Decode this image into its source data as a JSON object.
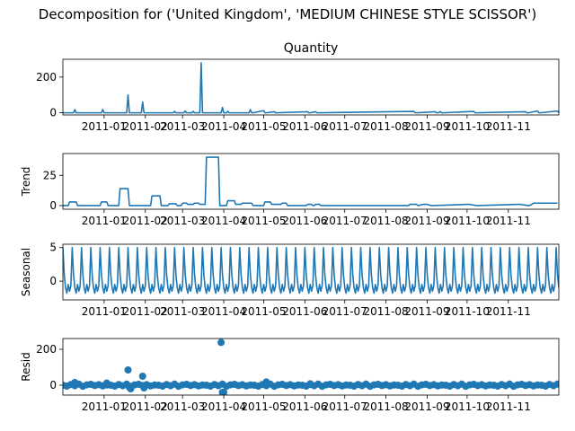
{
  "suptitle": "Decomposition for ('United Kingdom', 'MEDIUM CHINESE STYLE SCISSOR')",
  "colors": {
    "line": "#1f77b4",
    "axis": "#000000",
    "background": "#ffffff"
  },
  "x_axis": {
    "type": "date",
    "range": [
      "2010-12-01",
      "2011-12-09"
    ],
    "tick_labels": [
      "2011-01",
      "2011-02",
      "2011-03",
      "2011-04",
      "2011-05",
      "2011-06",
      "2011-07",
      "2011-08",
      "2011-09",
      "2011-10",
      "2011-11"
    ],
    "tick_dates": [
      "2011-01-01",
      "2011-02-01",
      "2011-03-01",
      "2011-04-01",
      "2011-05-01",
      "2011-06-01",
      "2011-07-01",
      "2011-08-01",
      "2011-09-01",
      "2011-10-01",
      "2011-11-01"
    ]
  },
  "chart_data": [
    {
      "type": "line",
      "title": "Quantity",
      "ylabel": "",
      "ylim": [
        -12,
        300
      ],
      "yticks": [
        0,
        200
      ],
      "series": [
        {
          "x": [
            "2010-12-01",
            "2010-12-09",
            "2010-12-10",
            "2010-12-11",
            "2010-12-30",
            "2010-12-31",
            "2011-01-01",
            "2011-01-18",
            "2011-01-19",
            "2011-01-20",
            "2011-01-29",
            "2011-01-30",
            "2011-01-31",
            "2011-02-22",
            "2011-02-23",
            "2011-02-24",
            "2011-03-02",
            "2011-03-03",
            "2011-03-04",
            "2011-03-08",
            "2011-03-09",
            "2011-03-10",
            "2011-03-14",
            "2011-03-15",
            "2011-03-16",
            "2011-03-30",
            "2011-03-31",
            "2011-04-01",
            "2011-04-03",
            "2011-04-04",
            "2011-04-05",
            "2011-04-20",
            "2011-04-21",
            "2011-04-22",
            "2011-04-23",
            "2011-05-01",
            "2011-05-02",
            "2011-05-03",
            "2011-05-09",
            "2011-05-10",
            "2011-05-11",
            "2011-06-03",
            "2011-06-04",
            "2011-06-05",
            "2011-06-09",
            "2011-06-10",
            "2011-06-11",
            "2011-08-22",
            "2011-08-23",
            "2011-08-24",
            "2011-09-07",
            "2011-09-08",
            "2011-09-09",
            "2011-09-11",
            "2011-09-12",
            "2011-09-13",
            "2011-10-06",
            "2011-10-07",
            "2011-10-08",
            "2011-11-14",
            "2011-11-15",
            "2011-11-16",
            "2011-11-23",
            "2011-11-24",
            "2011-11-25",
            "2011-12-08",
            "2011-12-09"
          ],
          "y": [
            0,
            0,
            18,
            0,
            0,
            18,
            0,
            0,
            100,
            0,
            0,
            60,
            0,
            0,
            8,
            0,
            0,
            10,
            0,
            0,
            8,
            0,
            0,
            280,
            0,
            0,
            30,
            0,
            0,
            8,
            0,
            0,
            18,
            0,
            0,
            12,
            0,
            0,
            6,
            0,
            0,
            6,
            0,
            0,
            6,
            0,
            0,
            8,
            0,
            0,
            6,
            0,
            0,
            6,
            0,
            0,
            8,
            0,
            0,
            6,
            0,
            0,
            10,
            0,
            0,
            10,
            0
          ]
        }
      ]
    },
    {
      "type": "line",
      "ylabel": "Trend",
      "ylim": [
        -3,
        43
      ],
      "yticks": [
        0,
        25
      ],
      "series": [
        {
          "x": [
            "2010-12-01",
            "2010-12-05",
            "2010-12-06",
            "2010-12-11",
            "2010-12-12",
            "2010-12-29",
            "2010-12-30",
            "2011-01-03",
            "2011-01-04",
            "2011-01-12",
            "2011-01-13",
            "2011-01-19",
            "2011-01-20",
            "2011-02-05",
            "2011-02-06",
            "2011-02-12",
            "2011-02-13",
            "2011-02-18",
            "2011-02-19",
            "2011-02-24",
            "2011-02-25",
            "2011-02-28",
            "2011-03-01",
            "2011-03-04",
            "2011-03-05",
            "2011-03-09",
            "2011-03-10",
            "2011-03-13",
            "2011-03-14",
            "2011-03-18",
            "2011-03-19",
            "2011-03-28",
            "2011-03-29",
            "2011-04-03",
            "2011-04-04",
            "2011-04-09",
            "2011-04-10",
            "2011-04-14",
            "2011-04-15",
            "2011-04-22",
            "2011-04-23",
            "2011-05-01",
            "2011-05-02",
            "2011-05-06",
            "2011-05-07",
            "2011-05-14",
            "2011-05-15",
            "2011-05-18",
            "2011-05-19",
            "2011-06-02",
            "2011-06-03",
            "2011-06-06",
            "2011-06-07",
            "2011-06-08",
            "2011-06-09",
            "2011-06-12",
            "2011-06-13",
            "2011-06-28",
            "2011-08-18",
            "2011-08-19",
            "2011-08-24",
            "2011-08-25",
            "2011-08-29",
            "2011-09-01",
            "2011-09-04",
            "2011-09-05",
            "2011-10-02",
            "2011-10-03",
            "2011-10-08",
            "2011-10-09",
            "2011-11-09",
            "2011-11-10",
            "2011-11-16",
            "2011-11-17",
            "2011-11-20",
            "2011-11-21",
            "2011-12-08"
          ],
          "y": [
            0,
            0,
            3,
            3,
            0,
            0,
            3,
            3,
            0,
            0,
            14,
            14,
            0,
            0,
            8,
            8,
            0,
            0,
            1.5,
            1.5,
            0,
            0,
            2,
            2,
            1,
            1,
            2,
            2,
            1,
            1,
            40,
            40,
            0,
            0,
            4,
            4,
            1,
            1,
            2,
            2,
            0,
            0,
            3,
            3,
            1,
            1,
            2,
            2,
            0,
            0,
            1,
            1,
            0,
            0,
            1,
            1,
            0,
            0,
            0,
            1,
            1,
            0,
            1,
            1,
            0,
            0,
            1,
            1,
            0,
            0,
            1,
            1,
            0,
            0,
            2,
            2,
            2
          ]
        }
      ]
    },
    {
      "type": "line",
      "ylabel": "Seasonal",
      "ylim": [
        -2.8,
        5.5
      ],
      "yticks": [
        0,
        5
      ],
      "pattern": {
        "period_days": 7,
        "weekly_values": [
          5,
          1,
          -1,
          -1.8,
          -0.5,
          -1.5,
          -0.7
        ],
        "range": [
          "2010-12-01",
          "2011-12-09"
        ]
      }
    },
    {
      "type": "scatter",
      "ylabel": "Resid",
      "ylim": [
        -55,
        260
      ],
      "yticks": [
        0,
        200
      ],
      "baseline": {
        "range": [
          "2010-12-01",
          "2011-12-09"
        ],
        "step_days": 3,
        "values": [
          0,
          -5,
          4,
          -3,
          6,
          -6,
          2,
          5,
          -2,
          3,
          -4,
          1
        ]
      },
      "series": [
        {
          "x": [
            "2010-12-10",
            "2011-01-03",
            "2011-01-19",
            "2011-01-20",
            "2011-01-21",
            "2011-01-30",
            "2011-01-31",
            "2011-03-30",
            "2011-03-31",
            "2011-04-01",
            "2011-05-03",
            "2011-06-05"
          ],
          "y": [
            15,
            12,
            85,
            -12,
            -20,
            50,
            -15,
            238,
            -40,
            -40,
            18,
            8
          ]
        }
      ]
    }
  ]
}
